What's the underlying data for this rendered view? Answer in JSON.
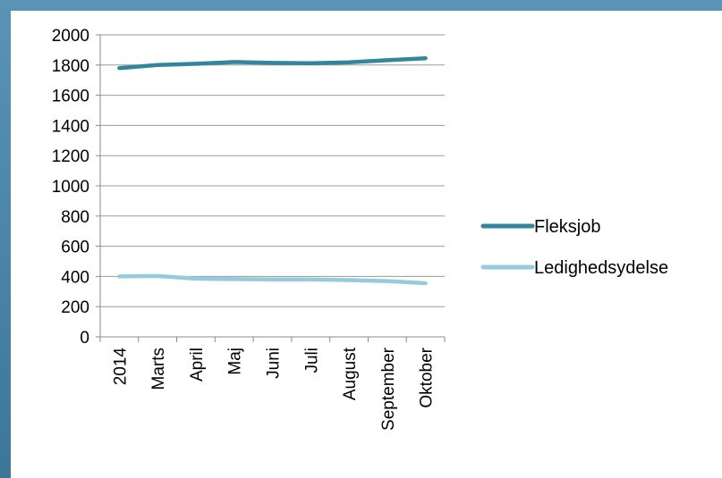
{
  "chart_data": {
    "type": "line",
    "title": "",
    "xlabel": "",
    "ylabel": "",
    "categories": [
      "2014",
      "Marts",
      "April",
      "Maj",
      "Juni",
      "Juli",
      "August",
      "September",
      "Oktober"
    ],
    "ylim": [
      0,
      2000
    ],
    "yticks": [
      0,
      200,
      400,
      600,
      800,
      1000,
      1200,
      1400,
      1600,
      1800,
      2000
    ],
    "grid": true,
    "legend": "right",
    "series": [
      {
        "name": "Fleksjob",
        "color": "#31859c",
        "values": [
          1780,
          1800,
          1808,
          1820,
          1814,
          1812,
          1818,
          1832,
          1845
        ]
      },
      {
        "name": "Ledighedsydelse",
        "color": "#93cddd",
        "values": [
          400,
          403,
          385,
          382,
          380,
          380,
          376,
          369,
          355
        ]
      }
    ]
  }
}
